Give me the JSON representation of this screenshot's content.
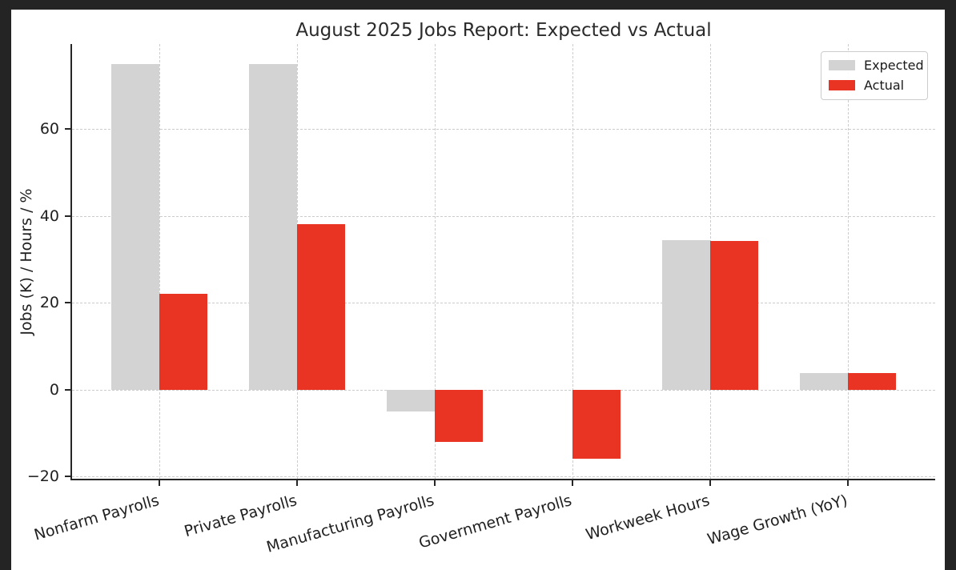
{
  "chart_data": {
    "type": "bar",
    "title": "August 2025 Jobs Report: Expected vs Actual",
    "xlabel": "",
    "ylabel": "Jobs (K) / Hours / %",
    "categories": [
      "Nonfarm Payrolls",
      "Private Payrolls",
      "Manufacturing Payrolls",
      "Government Payrolls",
      "Workweek Hours",
      "Wage Growth (YoY)"
    ],
    "series": [
      {
        "name": "Expected",
        "color": "#d3d3d3",
        "values": [
          75,
          75,
          -5,
          0,
          34.3,
          3.7
        ]
      },
      {
        "name": "Actual",
        "color": "#e93323",
        "values": [
          22,
          38,
          -12,
          -16,
          34.2,
          3.7
        ]
      }
    ],
    "yticks": [
      -20,
      0,
      20,
      40,
      60
    ],
    "ylim": [
      -20.55,
      79.55
    ],
    "grid": true,
    "legend_position": "upper right",
    "legend_entries": [
      "Expected",
      "Actual"
    ]
  },
  "palette": {
    "page_background": "#242424",
    "figure_background": "#ffffff",
    "expected_bar": "#d3d3d3",
    "actual_bar": "#e93323",
    "gridline": "#cccccc",
    "spine": "#262626",
    "text": "#1f1f1f"
  }
}
